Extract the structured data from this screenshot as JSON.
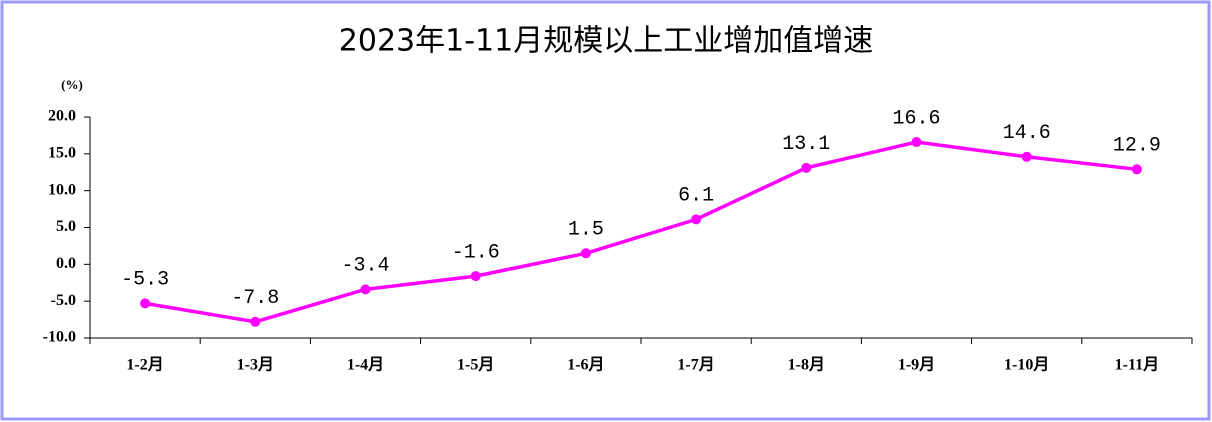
{
  "chart_data": {
    "type": "line",
    "title": "2023年1-11月规模以上工业增加值增速",
    "y_unit": "(%)",
    "categories": [
      "1-2月",
      "1-3月",
      "1-4月",
      "1-5月",
      "1-6月",
      "1-7月",
      "1-8月",
      "1-9月",
      "1-10月",
      "1-11月"
    ],
    "series": [
      {
        "name": "规模以上工业增加值增速",
        "color": "#ff00ff",
        "values": [
          -5.3,
          -7.8,
          -3.4,
          -1.6,
          1.5,
          6.1,
          13.1,
          16.6,
          14.6,
          12.9
        ]
      }
    ],
    "ylim": [
      -10,
      20
    ],
    "yticks": [
      {
        "value": -10,
        "label": "-10.0"
      },
      {
        "value": -5,
        "label": "-5.0"
      },
      {
        "value": 0,
        "label": "0.0"
      },
      {
        "value": 5,
        "label": "5.0"
      },
      {
        "value": 10,
        "label": "10.0"
      },
      {
        "value": 15,
        "label": "15.0"
      },
      {
        "value": 20,
        "label": "20.0"
      }
    ],
    "grid": false
  }
}
